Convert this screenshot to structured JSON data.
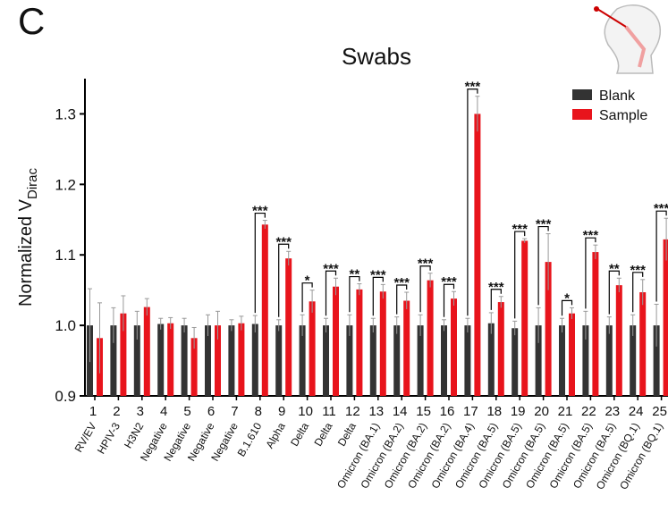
{
  "panel_label": "C",
  "chart_data": {
    "type": "bar",
    "title": "Swabs",
    "y_label": "Normalized V",
    "y_label_subscript": "Dirac",
    "categories": [
      "1",
      "2",
      "3",
      "4",
      "5",
      "6",
      "7",
      "8",
      "9",
      "10",
      "11",
      "12",
      "13",
      "14",
      "15",
      "16",
      "17",
      "18",
      "19",
      "20",
      "21",
      "22",
      "23",
      "24",
      "25"
    ],
    "category_names": [
      "RV/EV",
      "HPIV-3",
      "H3N2",
      "Negative",
      "Negative",
      "Negative",
      "Negative",
      "B.1.610",
      "Alpha",
      "Delta",
      "Delta",
      "Delta",
      "Omicron (BA.1)",
      "Omicron (BA.2)",
      "Omicron (BA.2)",
      "Omicron (BA.2)",
      "Omicron (BA.4)",
      "Omicron (BA.5)",
      "Omicron (BA.5)",
      "Omicron (BA.5)",
      "Omicron (BA.5)",
      "Omicron (BA.5)",
      "Omicron (BA.5)",
      "Omicron (BQ.1)",
      "Omicron (BQ.1)"
    ],
    "series": [
      {
        "name": "Blank",
        "color": "#333333",
        "values": [
          1.0,
          1.0,
          1.0,
          1.002,
          1.0,
          1.0,
          1.0,
          1.002,
          1.0,
          1.0,
          1.0,
          1.0,
          1.0,
          1.0,
          1.0,
          1.0,
          1.0,
          1.003,
          0.996,
          1.0,
          1.0,
          1.0,
          1.0,
          1.0,
          1.0
        ],
        "errors": [
          0.052,
          0.025,
          0.02,
          0.008,
          0.01,
          0.015,
          0.008,
          0.012,
          0.008,
          0.015,
          0.01,
          0.015,
          0.01,
          0.012,
          0.015,
          0.008,
          0.01,
          0.015,
          0.01,
          0.025,
          0.01,
          0.02,
          0.012,
          0.015,
          0.03
        ]
      },
      {
        "name": "Sample",
        "color": "#e8141c",
        "values": [
          0.982,
          1.017,
          1.026,
          1.003,
          0.982,
          1.0,
          1.003,
          1.143,
          1.095,
          1.034,
          1.055,
          1.051,
          1.048,
          1.035,
          1.064,
          1.038,
          1.3,
          1.033,
          1.12,
          1.09,
          1.017,
          1.104,
          1.057,
          1.047,
          1.122
        ],
        "errors": [
          0.05,
          0.025,
          0.012,
          0.008,
          0.015,
          0.02,
          0.01,
          0.006,
          0.01,
          0.016,
          0.012,
          0.008,
          0.01,
          0.012,
          0.01,
          0.01,
          0.025,
          0.008,
          0.003,
          0.04,
          0.008,
          0.01,
          0.01,
          0.018,
          0.03
        ]
      }
    ],
    "significance": [
      null,
      null,
      null,
      null,
      null,
      null,
      null,
      "***",
      "***",
      "*",
      "***",
      "**",
      "***",
      "***",
      "***",
      "***",
      "***",
      "***",
      "***",
      "***",
      "*",
      "***",
      "**",
      "***",
      "***"
    ],
    "ylim": [
      0.9,
      1.35
    ],
    "yticks": [
      0.9,
      1.0,
      1.1,
      1.2,
      1.3
    ],
    "legend": "top-right"
  }
}
